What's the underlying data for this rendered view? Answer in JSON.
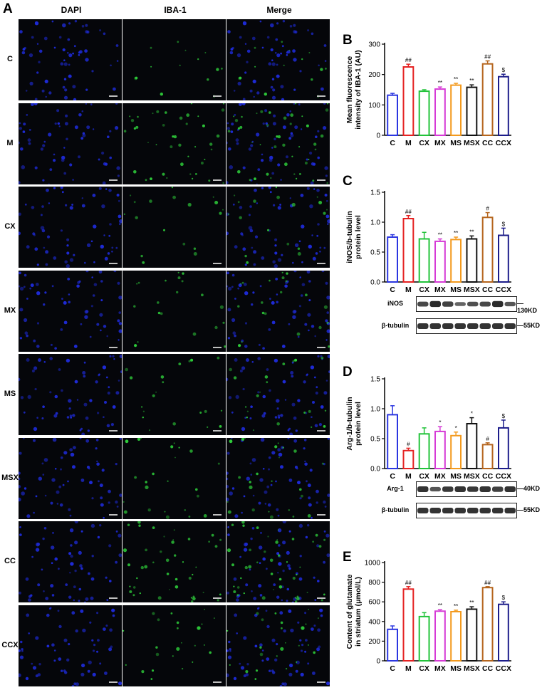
{
  "panel_a": {
    "letter": "A",
    "columns": [
      "DAPI",
      "IBA-1",
      "Merge"
    ],
    "rows": [
      "C",
      "M",
      "CX",
      "MX",
      "MS",
      "MSX",
      "CC",
      "CCX"
    ],
    "iba1_density": [
      0.15,
      0.85,
      0.25,
      0.3,
      0.3,
      0.4,
      0.9,
      0.4
    ],
    "colors": {
      "dapi": "#1e2bd8",
      "iba1": "#2ecc3a",
      "background": "#05060a"
    }
  },
  "chart_data": [
    {
      "id": "B",
      "letter": "B",
      "type": "bar",
      "categories": [
        "C",
        "M",
        "CX",
        "MX",
        "MS",
        "MSX",
        "CC",
        "CCX"
      ],
      "values": [
        132,
        225,
        145,
        152,
        165,
        158,
        235,
        193
      ],
      "errors": [
        6,
        9,
        5,
        7,
        6,
        8,
        10,
        8
      ],
      "annotations": [
        "",
        "##",
        "",
        "**",
        "**",
        "**",
        "##",
        "$"
      ],
      "ylabel": "Mean fluorescence intensity of IBA-1 (AU)",
      "ylabel_lines": [
        "Mean fluorescence",
        "intensity of IBA-1 (AU)"
      ],
      "ylim": [
        0,
        300
      ],
      "yticks": [
        "0",
        "100",
        "200",
        "300"
      ],
      "bar_colors": [
        "#2b36e0",
        "#e52222",
        "#22c33a",
        "#d63ad6",
        "#f39a1e",
        "#111111",
        "#b5651d",
        "#1c1c8a"
      ]
    },
    {
      "id": "C",
      "letter": "C",
      "type": "bar",
      "categories": [
        "C",
        "M",
        "CX",
        "MX",
        "MS",
        "MSX",
        "CC",
        "CCX"
      ],
      "values": [
        0.75,
        1.06,
        0.72,
        0.68,
        0.71,
        0.72,
        1.08,
        0.78
      ],
      "errors": [
        0.04,
        0.05,
        0.11,
        0.04,
        0.04,
        0.05,
        0.08,
        0.12
      ],
      "annotations": [
        "",
        "##",
        "",
        "**",
        "**",
        "**",
        "#",
        "$"
      ],
      "ylabel": "iNOS/b-tubulin protein level",
      "ylabel_lines": [
        "iNOS/b-tubulin",
        "protein level"
      ],
      "ylim": [
        0,
        1.5
      ],
      "yticks": [
        "0.0",
        "0.5",
        "1.0",
        "1.5"
      ],
      "bar_colors": [
        "#2b36e0",
        "#e52222",
        "#22c33a",
        "#d63ad6",
        "#f39a1e",
        "#111111",
        "#b5651d",
        "#1c1c8a"
      ],
      "blots": [
        {
          "label": "iNOS",
          "size": "—130KD",
          "intensity": [
            0.7,
            0.9,
            0.75,
            0.5,
            0.65,
            0.7,
            0.9,
            0.6
          ]
        },
        {
          "label": "β-tubulin",
          "size": "—55KD",
          "intensity": [
            0.85,
            0.85,
            0.85,
            0.85,
            0.85,
            0.85,
            0.85,
            0.85
          ]
        }
      ]
    },
    {
      "id": "D",
      "letter": "D",
      "type": "bar",
      "categories": [
        "C",
        "M",
        "CX",
        "MX",
        "MS",
        "MSX",
        "CC",
        "CCX"
      ],
      "values": [
        0.9,
        0.3,
        0.58,
        0.62,
        0.55,
        0.75,
        0.4,
        0.68
      ],
      "errors": [
        0.15,
        0.04,
        0.1,
        0.08,
        0.06,
        0.1,
        0.03,
        0.13
      ],
      "annotations": [
        "",
        "#",
        "",
        "*",
        "*",
        "*",
        "#",
        "$"
      ],
      "ylabel": "Arg-1/b-tubulin protein level",
      "ylabel_lines": [
        "Arg-1/b-tubulin",
        "protein level"
      ],
      "ylim": [
        0,
        1.5
      ],
      "yticks": [
        "0.0",
        "0.5",
        "1.0",
        "1.5"
      ],
      "bar_colors": [
        "#2b36e0",
        "#e52222",
        "#22c33a",
        "#d63ad6",
        "#f39a1e",
        "#111111",
        "#b5651d",
        "#1c1c8a"
      ],
      "blots": [
        {
          "label": "Arg-1",
          "size": "—40KD",
          "intensity": [
            0.85,
            0.6,
            0.8,
            0.85,
            0.8,
            0.85,
            0.75,
            0.85
          ]
        },
        {
          "label": "β-tubulin",
          "size": "—55KD",
          "intensity": [
            0.85,
            0.85,
            0.85,
            0.85,
            0.85,
            0.85,
            0.85,
            0.85
          ]
        }
      ]
    },
    {
      "id": "E",
      "letter": "E",
      "type": "bar",
      "categories": [
        "C",
        "M",
        "CX",
        "MX",
        "MS",
        "MSX",
        "CC",
        "CCX"
      ],
      "values": [
        320,
        730,
        450,
        505,
        500,
        525,
        745,
        575
      ],
      "errors": [
        35,
        25,
        40,
        15,
        15,
        25,
        10,
        25
      ],
      "annotations": [
        "",
        "##",
        "",
        "**",
        "**",
        "**",
        "##",
        "$"
      ],
      "ylabel": "Content of glutamate in striatum (μmol/L)",
      "ylabel_lines": [
        "Content of glutamate",
        "in striatum (μmol/L)"
      ],
      "ylim": [
        0,
        1000
      ],
      "yticks": [
        "0",
        "200",
        "400",
        "600",
        "800",
        "1000"
      ],
      "bar_colors": [
        "#2b36e0",
        "#e52222",
        "#22c33a",
        "#d63ad6",
        "#f39a1e",
        "#111111",
        "#b5651d",
        "#1c1c8a"
      ]
    }
  ]
}
